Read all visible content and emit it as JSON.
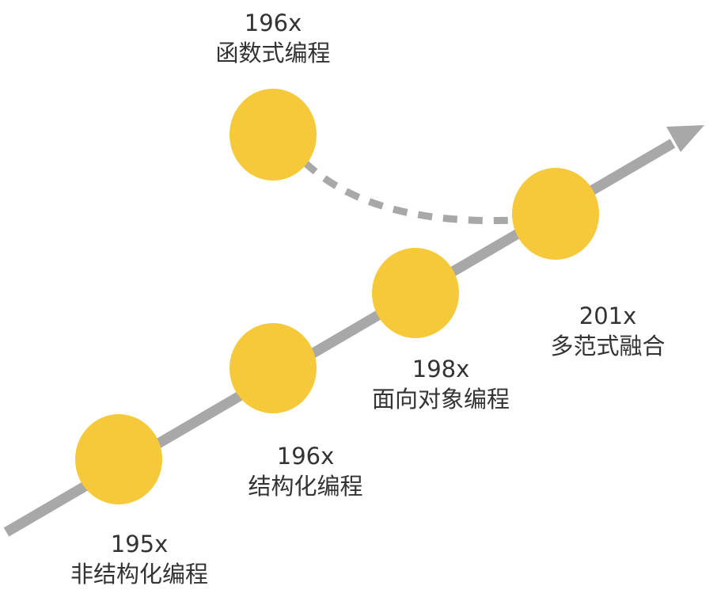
{
  "colors": {
    "node": "#f5c93a",
    "line": "#a8a8a8",
    "text": "#333333"
  },
  "nodes": [
    {
      "year": "195x",
      "label": "非结构化编程"
    },
    {
      "year": "196x",
      "label": "结构化编程"
    },
    {
      "year": "198x",
      "label": "面向对象编程"
    },
    {
      "year": "201x",
      "label": "多范式融合"
    },
    {
      "year": "196x",
      "label": "函数式编程"
    }
  ]
}
